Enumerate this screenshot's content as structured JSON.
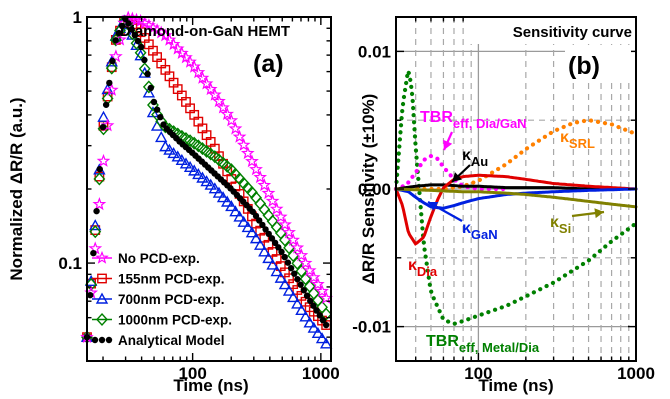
{
  "chart_data": [
    {
      "type": "line",
      "panel_label": "(a)",
      "title": "Diamond-on-GaN HEMT",
      "xlabel": "Time (ns)",
      "ylabel": "Normalized ΔR/R (a.u.)",
      "xscale": "log",
      "yscale": "log",
      "xlim": [
        15,
        1200
      ],
      "ylim": [
        0.04,
        1.0
      ],
      "xticks": [
        {
          "v": 100,
          "label": "100"
        },
        {
          "v": 1000,
          "label": "1000"
        }
      ],
      "yticks": [
        {
          "v": 0.1,
          "label": "0.1"
        },
        {
          "v": 1,
          "label": "1"
        }
      ],
      "legend_position": "bottom-left",
      "series": [
        {
          "name": "No PCD-exp.",
          "color": "#ff00ff",
          "marker": "star",
          "x": [
            15,
            20,
            25,
            30,
            40,
            60,
            100,
            150,
            200,
            300,
            500,
            800,
            1100
          ],
          "y": [
            0.05,
            0.25,
            0.68,
            1.0,
            0.96,
            0.85,
            0.64,
            0.48,
            0.38,
            0.25,
            0.15,
            0.095,
            0.072
          ]
        },
        {
          "name": "155nm PCD-exp.",
          "color": "#e00000",
          "marker": "square",
          "x": [
            15,
            20,
            25,
            30,
            40,
            60,
            100,
            150,
            200,
            300,
            500,
            800,
            1100
          ],
          "y": [
            0.05,
            0.35,
            0.8,
            0.99,
            0.86,
            0.62,
            0.41,
            0.29,
            0.22,
            0.15,
            0.095,
            0.067,
            0.056
          ]
        },
        {
          "name": "700nm PCD-exp.",
          "color": "#0020e0",
          "marker": "triangle",
          "x": [
            15,
            20,
            25,
            30,
            40,
            50,
            60,
            80,
            100,
            150,
            200,
            300,
            500,
            800,
            1100
          ],
          "y": [
            0.05,
            0.38,
            0.83,
            0.99,
            0.68,
            0.39,
            0.3,
            0.265,
            0.24,
            0.2,
            0.17,
            0.13,
            0.085,
            0.058,
            0.047
          ]
        },
        {
          "name": "1000nm PCD-exp.",
          "color": "#008000",
          "marker": "diamond",
          "x": [
            15,
            20,
            25,
            30,
            40,
            50,
            60,
            80,
            100,
            150,
            200,
            300,
            500,
            800,
            1100
          ],
          "y": [
            0.05,
            0.34,
            0.8,
            0.99,
            0.7,
            0.42,
            0.36,
            0.33,
            0.31,
            0.27,
            0.24,
            0.19,
            0.13,
            0.082,
            0.062
          ]
        },
        {
          "name": "Analytical Model",
          "color": "#000000",
          "marker": "dot",
          "x": [
            15,
            20,
            25,
            30,
            40,
            50,
            60,
            80,
            100,
            150,
            200,
            300,
            500,
            800,
            1100
          ],
          "y": [
            0.05,
            0.36,
            0.8,
            0.99,
            0.75,
            0.45,
            0.36,
            0.31,
            0.28,
            0.23,
            0.2,
            0.16,
            0.11,
            0.072,
            0.056
          ]
        }
      ]
    },
    {
      "type": "line",
      "panel_label": "(b)",
      "title": "Sensitivity curve",
      "xlabel": "Time (ns)",
      "ylabel": "ΔR/R Sensitivity (±10%)",
      "xscale": "log",
      "xlim": [
        30,
        1000
      ],
      "ylim": [
        -0.0125,
        0.0125
      ],
      "grid": true,
      "xticks": [
        {
          "v": 100,
          "label": "100"
        },
        {
          "v": 1000,
          "label": "1000"
        }
      ],
      "yticks": [
        {
          "v": -0.01,
          "label": "-0.01"
        },
        {
          "v": 0,
          "label": "0.00"
        },
        {
          "v": 0.01,
          "label": "0.01"
        }
      ],
      "annotations": [
        {
          "label": "TBR",
          "sub": "eff, Dia/GaN",
          "color": "#ff00ff"
        },
        {
          "label": "κ",
          "sub": "Au",
          "color": "#000000"
        },
        {
          "label": "κ",
          "sub": "SRL",
          "color": "#ff8000"
        },
        {
          "label": "κ",
          "sub": "GaN",
          "color": "#0020e0"
        },
        {
          "label": "κ",
          "sub": "Si",
          "color": "#808000"
        },
        {
          "label": "κ",
          "sub": "Dia",
          "color": "#e00000"
        },
        {
          "label": "TBR",
          "sub": "eff, Metal/Dia",
          "color": "#008000"
        }
      ],
      "series": [
        {
          "name": "TBR eff, Metal/Dia",
          "color": "#008000",
          "style": "dotted",
          "x": [
            30,
            33,
            36,
            38,
            40,
            45,
            50,
            60,
            70,
            80,
            100,
            150,
            200,
            300,
            500,
            700,
            1000
          ],
          "y": [
            0.0,
            0.006,
            0.0088,
            0.007,
            0.003,
            -0.004,
            -0.0075,
            -0.0095,
            -0.0098,
            -0.0096,
            -0.0092,
            -0.0085,
            -0.0078,
            -0.0068,
            -0.0052,
            -0.0038,
            -0.0025
          ]
        },
        {
          "name": "κ SRL",
          "color": "#ff8000",
          "style": "dotted",
          "x": [
            30,
            60,
            80,
            100,
            150,
            200,
            300,
            400,
            500,
            700,
            1000
          ],
          "y": [
            0.0,
            0.0,
            0.0002,
            0.0006,
            0.0018,
            0.0029,
            0.0042,
            0.0048,
            0.005,
            0.0047,
            0.004
          ]
        },
        {
          "name": "TBR eff, Dia/GaN",
          "color": "#ff00ff",
          "style": "dotted",
          "x": [
            30,
            35,
            40,
            45,
            50,
            55,
            60,
            70,
            80,
            100,
            150
          ],
          "y": [
            0.0,
            0.0003,
            0.0012,
            0.0021,
            0.0024,
            0.0022,
            0.0016,
            0.0007,
            0.0002,
            0.0,
            0.0
          ]
        },
        {
          "name": "κ Au",
          "color": "#000000",
          "style": "solid",
          "x": [
            30,
            40,
            50,
            60,
            80,
            100,
            150,
            200,
            300,
            500,
            1000
          ],
          "y": [
            0.0,
            0.0002,
            0.0003,
            0.0003,
            0.0002,
            0.0002,
            0.0001,
            0.0001,
            0.0001,
            0.0,
            0.0
          ]
        },
        {
          "name": "κ Dia",
          "color": "#e00000",
          "style": "solid",
          "x": [
            30,
            33,
            36,
            40,
            45,
            50,
            55,
            60,
            70,
            80,
            100,
            150,
            200,
            300,
            500,
            1000
          ],
          "y": [
            0.0,
            -0.0012,
            -0.0032,
            -0.004,
            -0.0035,
            -0.002,
            -0.0008,
            0.0001,
            0.0007,
            0.0009,
            0.001,
            0.0009,
            0.0007,
            0.0004,
            0.0002,
            0.0
          ]
        },
        {
          "name": "κ GaN",
          "color": "#0020e0",
          "style": "solid",
          "x": [
            30,
            36,
            40,
            45,
            50,
            60,
            70,
            80,
            100,
            150,
            200,
            300,
            500,
            1000
          ],
          "y": [
            0.0,
            -0.0002,
            -0.0006,
            -0.001,
            -0.0013,
            -0.0014,
            -0.0012,
            -0.001,
            -0.0007,
            -0.0004,
            -0.0003,
            -0.0002,
            -0.0001,
            0.0
          ]
        },
        {
          "name": "κ Si",
          "color": "#808000",
          "style": "solid",
          "x": [
            30,
            50,
            80,
            100,
            150,
            200,
            300,
            500,
            700,
            1000
          ],
          "y": [
            0.0,
            -0.0001,
            -0.0002,
            -0.0002,
            -0.0003,
            -0.0004,
            -0.0006,
            -0.0009,
            -0.0011,
            -0.0013
          ]
        }
      ]
    }
  ]
}
